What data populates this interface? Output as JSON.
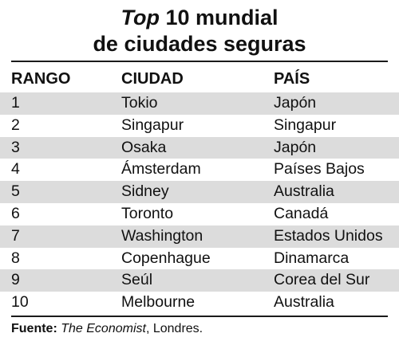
{
  "title": {
    "line1_emphasis": "Top",
    "line1_rest": " 10 mundial",
    "line2": "de ciudades seguras"
  },
  "table": {
    "headers": [
      "RANGO",
      "CIUDAD",
      "PAÍS"
    ],
    "rows": [
      [
        "1",
        "Tokio",
        "Japón"
      ],
      [
        "2",
        "Singapur",
        "Singapur"
      ],
      [
        "3",
        "Osaka",
        "Japón"
      ],
      [
        "4",
        "Ámsterdam",
        "Países Bajos"
      ],
      [
        "5",
        "Sidney",
        "Australia"
      ],
      [
        "6",
        "Toronto",
        "Canadá"
      ],
      [
        "7",
        "Washington",
        "Estados Unidos"
      ],
      [
        "8",
        "Copenhague",
        "Dinamarca"
      ],
      [
        "9",
        "Seúl",
        "Corea del Sur"
      ],
      [
        "10",
        "Melbourne",
        "Australia"
      ]
    ]
  },
  "source": {
    "label": "Fuente:",
    "publication": "The Economist",
    "rest": ", Londres."
  },
  "colors": {
    "stripe": "#dcdcdc",
    "text": "#111111"
  }
}
